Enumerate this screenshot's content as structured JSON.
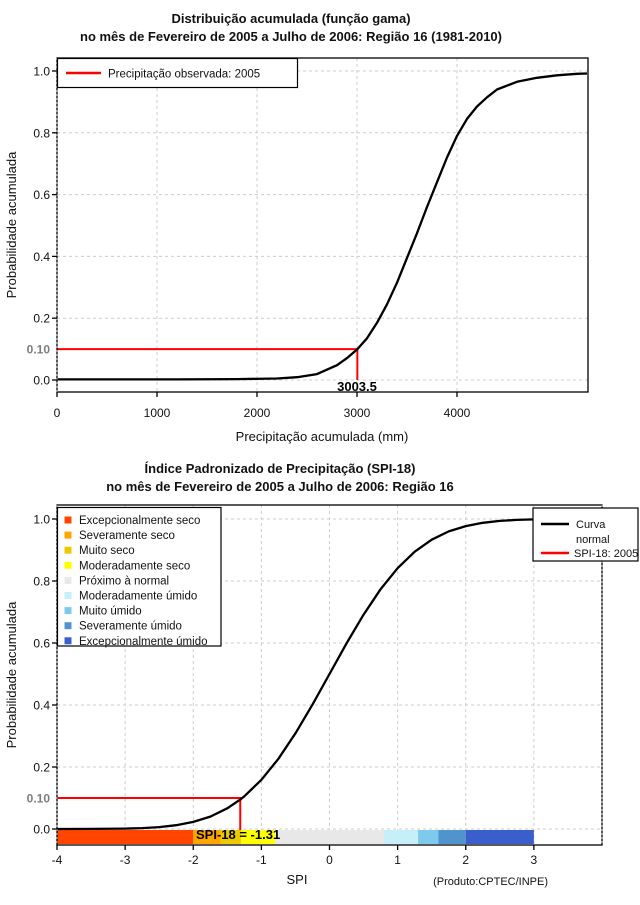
{
  "chart_data": [
    {
      "type": "line",
      "title": "Distribuição acumulada (função gama)",
      "subtitle": "no mês de Fevereiro de 2005 a Julho de 2006: Região 16 (1981-2010)",
      "xlabel": "Precipitação acumulada (mm)",
      "ylabel": "Probabilidade acumulada",
      "xlim": [
        0,
        5310
      ],
      "ylim": [
        0,
        1
      ],
      "x_ticks": [
        "0",
        "1000",
        "2000",
        "3000",
        "4000"
      ],
      "y_ticks": [
        "0.0",
        "0.2",
        "0.4",
        "0.6",
        "0.8",
        "1.0"
      ],
      "grid": true,
      "legend": {
        "position": "top-left",
        "entries": [
          {
            "label": "Precipitação observada: 2005",
            "color": "#FF0000"
          }
        ]
      },
      "series": [
        {
          "name": "Distribuição gama acumulada",
          "color": "#000000",
          "points": [
            [
              0,
              0.002
            ],
            [
              600,
              0.002
            ],
            [
              1200,
              0.002
            ],
            [
              1800,
              0.003
            ],
            [
              2200,
              0.005
            ],
            [
              2400,
              0.009
            ],
            [
              2600,
              0.019
            ],
            [
              2800,
              0.048
            ],
            [
              2900,
              0.071
            ],
            [
              3003.5,
              0.1
            ],
            [
              3100,
              0.135
            ],
            [
              3200,
              0.185
            ],
            [
              3300,
              0.245
            ],
            [
              3400,
              0.315
            ],
            [
              3500,
              0.395
            ],
            [
              3600,
              0.475
            ],
            [
              3700,
              0.56
            ],
            [
              3800,
              0.64
            ],
            [
              3900,
              0.72
            ],
            [
              4000,
              0.79
            ],
            [
              4100,
              0.845
            ],
            [
              4200,
              0.885
            ],
            [
              4300,
              0.915
            ],
            [
              4400,
              0.94
            ],
            [
              4600,
              0.965
            ],
            [
              4800,
              0.978
            ],
            [
              5000,
              0.986
            ],
            [
              5200,
              0.991
            ],
            [
              5300,
              0.992
            ]
          ]
        }
      ],
      "annotation": {
        "prob": 0.1,
        "prob_label": "0.10",
        "value": 3003.5,
        "value_label": "3003.5",
        "color": "#FF0000"
      }
    },
    {
      "type": "line",
      "title": "Índice Padronizado de Precipitação (SPI-18)",
      "subtitle": "no mês de Fevereiro de 2005 a Julho de 2006: Região 16",
      "xlabel": "SPI",
      "ylabel": "Probabilidade acumulada",
      "credit": "(Produto:CPTEC/INPE)",
      "xlim": [
        -4,
        4
      ],
      "ylim": [
        0,
        1
      ],
      "x_ticks": [
        "-4",
        "-3",
        "-2",
        "-1",
        "0",
        "1",
        "2",
        "3"
      ],
      "x_grid": [
        -4,
        -3,
        -2,
        -1,
        0,
        1,
        2,
        3,
        4
      ],
      "y_ticks": [
        "0.0",
        "0.2",
        "0.4",
        "0.6",
        "0.8",
        "1.0"
      ],
      "grid": true,
      "legend_right": {
        "position": "top-right",
        "entries": [
          {
            "label_lines": [
              "Curva",
              "normal"
            ],
            "color": "#000000"
          },
          {
            "label_lines": [
              "SPI-18: 2005"
            ],
            "color": "#FF0000"
          }
        ]
      },
      "categories": [
        {
          "label": "Excepcionalmente seco",
          "color": "#FF4500",
          "from": -4,
          "to": -2
        },
        {
          "label": "Severamente seco",
          "color": "#FFA500",
          "from": -2,
          "to": -1.6
        },
        {
          "label": "Muito seco",
          "color": "#EEC900",
          "from": -1.6,
          "to": -1.3
        },
        {
          "label": "Moderadamente seco",
          "color": "#FFFF00",
          "from": -1.3,
          "to": -0.8
        },
        {
          "label": "Próximo à normal",
          "color": "#E8E8E8",
          "from": -0.8,
          "to": 0.8
        },
        {
          "label": "Moderadamente úmido",
          "color": "#C6EFFA",
          "from": 0.8,
          "to": 1.3
        },
        {
          "label": "Muito úmido",
          "color": "#7EC9EE",
          "from": 1.3,
          "to": 1.6
        },
        {
          "label": "Severamente úmido",
          "color": "#4F94CD",
          "from": 1.6,
          "to": 2
        },
        {
          "label": "Excepcionalmente úmido",
          "color": "#3A5FCD",
          "from": 2,
          "to": 3
        }
      ],
      "series": [
        {
          "name": "Curva normal",
          "color": "#000000",
          "points": [
            [
              -4,
              0.0001
            ],
            [
              -3.5,
              0.0002
            ],
            [
              -3,
              0.0013
            ],
            [
              -2.75,
              0.003
            ],
            [
              -2.5,
              0.0062
            ],
            [
              -2.25,
              0.0122
            ],
            [
              -2,
              0.0228
            ],
            [
              -1.75,
              0.0401
            ],
            [
              -1.5,
              0.0668
            ],
            [
              -1.31,
              0.0951
            ],
            [
              -1.25,
              0.1056
            ],
            [
              -1,
              0.1587
            ],
            [
              -0.75,
              0.2266
            ],
            [
              -0.5,
              0.3085
            ],
            [
              -0.25,
              0.4013
            ],
            [
              0,
              0.5
            ],
            [
              0.25,
              0.5987
            ],
            [
              0.5,
              0.6915
            ],
            [
              0.75,
              0.7734
            ],
            [
              1,
              0.8413
            ],
            [
              1.25,
              0.8944
            ],
            [
              1.5,
              0.9332
            ],
            [
              1.75,
              0.9599
            ],
            [
              2,
              0.9772
            ],
            [
              2.25,
              0.9878
            ],
            [
              2.5,
              0.9938
            ],
            [
              2.75,
              0.997
            ],
            [
              3,
              0.9987
            ],
            [
              3.5,
              0.9998
            ],
            [
              4,
              0.99997
            ]
          ]
        }
      ],
      "annotation": {
        "prob": 0.1,
        "prob_label": "0.10",
        "spi": -1.31,
        "label": "SPI-18 = -1.31",
        "color": "#FF0000"
      }
    }
  ],
  "style_colors": {
    "grid": "#CCCCCC",
    "frame": "#000000",
    "highlight_red": "#FF0000"
  }
}
